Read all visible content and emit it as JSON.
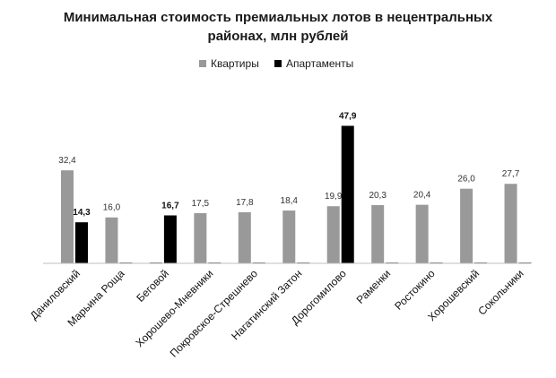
{
  "chart_data": {
    "type": "bar",
    "title": [
      "Минимальная стоимость премиальных лотов в нецентральных",
      "районах, млн рублей"
    ],
    "categories": [
      "Даниловский",
      "Марьина Роща",
      "Беговой",
      "Хорошево-Мневники",
      "Покровское-Стрешнево",
      "Нагатинский Затон",
      "Дорогомилово",
      "Раменки",
      "Ростокино",
      "Хорошевский",
      "Сокольники"
    ],
    "series": [
      {
        "name": "Квартиры",
        "color": "#999999",
        "values": [
          32.4,
          16.0,
          null,
          17.5,
          17.8,
          18.4,
          19.9,
          20.3,
          20.4,
          26.0,
          27.7
        ],
        "labels": [
          "32,4",
          "16,0",
          "",
          "17,5",
          "17,8",
          "18,4",
          "19,9",
          "20,3",
          "20,4",
          "26,0",
          "27,7"
        ]
      },
      {
        "name": "Апартаменты",
        "color": "#000000",
        "values": [
          14.3,
          null,
          16.7,
          null,
          null,
          null,
          47.9,
          null,
          null,
          null,
          null
        ],
        "labels": [
          "14,3",
          "",
          "16,7",
          "",
          "",
          "",
          "47,9",
          "",
          "",
          "",
          ""
        ]
      }
    ],
    "ylim": [
      0,
      50
    ],
    "grid": false,
    "legend_position": "top-center"
  }
}
